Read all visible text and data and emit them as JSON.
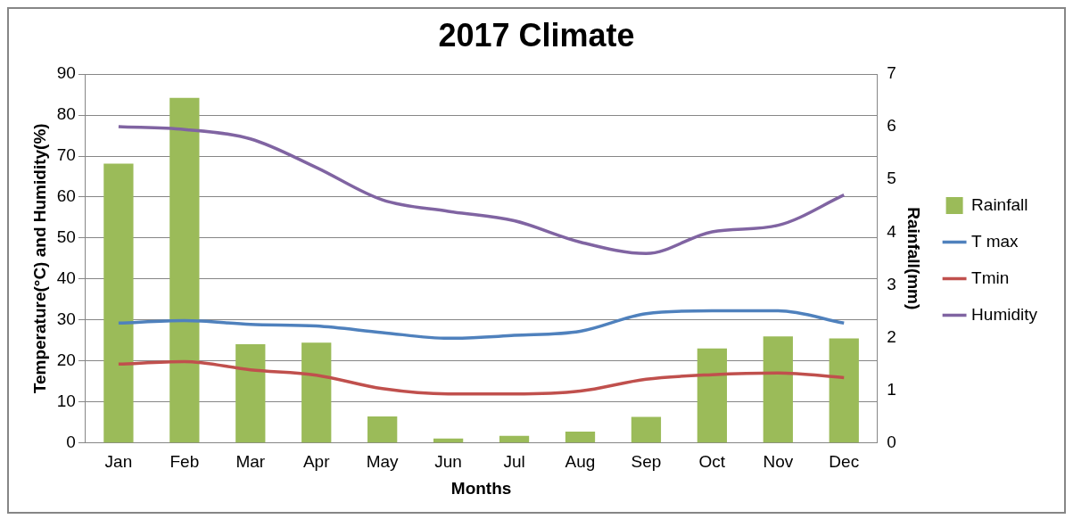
{
  "chart_data": {
    "type": "bar",
    "title": "2017 Climate",
    "xlabel": "Months",
    "ylabel": "Temperature(°C) and Humidity(%)",
    "y2label": "Rainfall(mm)",
    "categories": [
      "Jan",
      "Feb",
      "Mar",
      "Apr",
      "May",
      "Jun",
      "Jul",
      "Aug",
      "Sep",
      "Oct",
      "Nov",
      "Dec"
    ],
    "series": [
      {
        "name": "Rainfall",
        "axis": "y2",
        "color": "#9bbb59",
        "values": [
          5.3,
          6.55,
          1.87,
          1.9,
          0.5,
          0.08,
          0.13,
          0.21,
          0.49,
          1.79,
          2.02,
          1.98
        ]
      },
      {
        "name": "T max",
        "type": "line",
        "color": "#4f81bd",
        "values": [
          29.2,
          29.8,
          28.9,
          28.5,
          26.9,
          25.5,
          26.2,
          27.2,
          31.5,
          32.2,
          32.2,
          29.2
        ]
      },
      {
        "name": "Tmin",
        "type": "line",
        "color": "#c0504d",
        "values": [
          19.2,
          19.8,
          17.8,
          16.5,
          13.2,
          11.9,
          11.9,
          12.6,
          15.5,
          16.6,
          17,
          15.9
        ]
      },
      {
        "name": "Humidity",
        "type": "line",
        "color": "#8064a2",
        "values": [
          77.2,
          76.5,
          74.2,
          67.2,
          59.3,
          56.5,
          54.2,
          49,
          46.2,
          51.5,
          53.1,
          60.5
        ]
      }
    ],
    "ylim": [
      0,
      90
    ],
    "yticks": [
      0,
      10,
      20,
      30,
      40,
      50,
      60,
      70,
      80,
      90
    ],
    "y2lim": [
      0,
      7
    ],
    "y2ticks": [
      0,
      1,
      2,
      3,
      4,
      5,
      6,
      7
    ],
    "grid": "y",
    "legend": "right",
    "marker": "none",
    "line_style": "solid"
  }
}
